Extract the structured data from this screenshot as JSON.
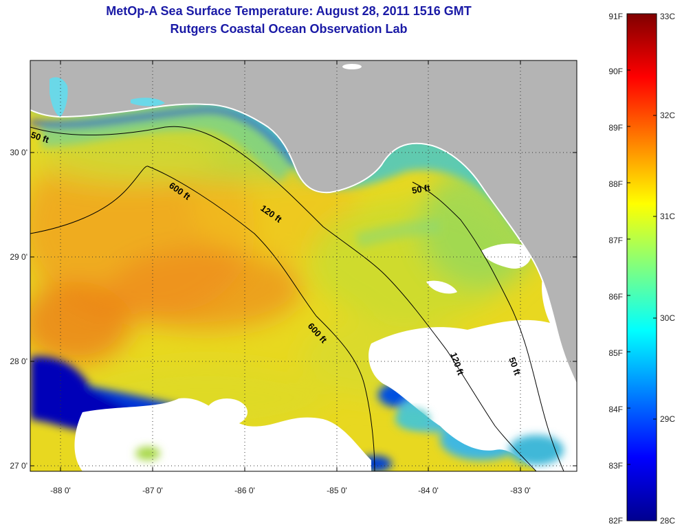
{
  "map": {
    "title": "MetOp-A Sea Surface Temperature:  August 28, 2011 1516 GMT",
    "subtitle": "Rutgers Coastal Ocean Observation Lab",
    "lon_ticks": [
      "-88 0'",
      "-87 0'",
      "-86 0'",
      "-85 0'",
      "-84 0'",
      "-83 0'"
    ],
    "lat_ticks": [
      "30 0'",
      "29 0'",
      "28 0'",
      "27 0'"
    ],
    "contour_labels": [
      "50 ft",
      "600 ft",
      "120 ft",
      "50 ft",
      "600 ft",
      "120 ft",
      "50 ft"
    ],
    "colors": {
      "land": "#b4b4b4",
      "cloud": "#ffffff",
      "warm": "#f0a020",
      "cool": "#3ac8d8"
    }
  },
  "colorbar": {
    "f_labels": [
      "91F",
      "90F",
      "89F",
      "88F",
      "87F",
      "86F",
      "85F",
      "84F",
      "83F",
      "82F"
    ],
    "c_labels": [
      "33C",
      "32C",
      "31C",
      "30C",
      "29C",
      "28C"
    ],
    "colormap": "jet"
  }
}
